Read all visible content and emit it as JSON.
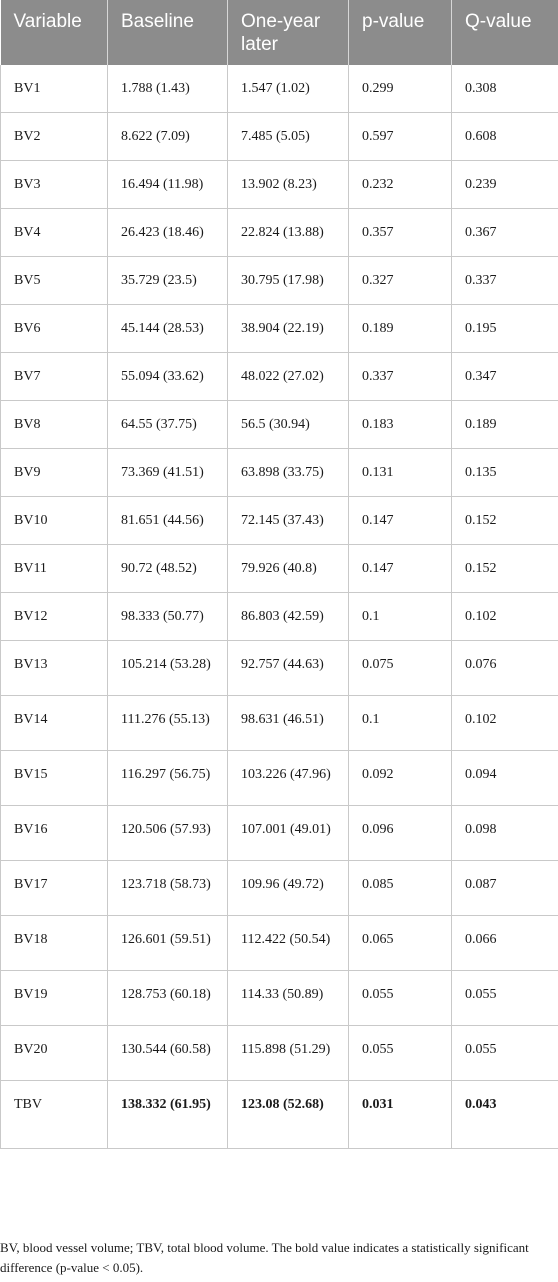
{
  "table": {
    "headers": [
      "Variable",
      "Baseline",
      "One-year later",
      "p-value",
      "Q-value"
    ],
    "rows": [
      {
        "variable": "BV1",
        "baseline": "1.788 (1.43)",
        "one_year": "1.547 (1.02)",
        "p": "0.299",
        "q": "0.308"
      },
      {
        "variable": "BV2",
        "baseline": "8.622 (7.09)",
        "one_year": "7.485 (5.05)",
        "p": "0.597",
        "q": "0.608"
      },
      {
        "variable": "BV3",
        "baseline": "16.494 (11.98)",
        "one_year": "13.902 (8.23)",
        "p": "0.232",
        "q": "0.239"
      },
      {
        "variable": "BV4",
        "baseline": "26.423 (18.46)",
        "one_year": "22.824 (13.88)",
        "p": "0.357",
        "q": "0.367"
      },
      {
        "variable": "BV5",
        "baseline": "35.729 (23.5)",
        "one_year": "30.795 (17.98)",
        "p": "0.327",
        "q": "0.337"
      },
      {
        "variable": "BV6",
        "baseline": "45.144 (28.53)",
        "one_year": "38.904 (22.19)",
        "p": "0.189",
        "q": "0.195"
      },
      {
        "variable": "BV7",
        "baseline": "55.094 (33.62)",
        "one_year": "48.022 (27.02)",
        "p": "0.337",
        "q": "0.347"
      },
      {
        "variable": "BV8",
        "baseline": "64.55 (37.75)",
        "one_year": "56.5 (30.94)",
        "p": "0.183",
        "q": "0.189"
      },
      {
        "variable": "BV9",
        "baseline": "73.369 (41.51)",
        "one_year": "63.898 (33.75)",
        "p": "0.131",
        "q": "0.135"
      },
      {
        "variable": "BV10",
        "baseline": "81.651 (44.56)",
        "one_year": "72.145 (37.43)",
        "p": "0.147",
        "q": "0.152"
      },
      {
        "variable": "BV11",
        "baseline": "90.72 (48.52)",
        "one_year": "79.926 (40.8)",
        "p": "0.147",
        "q": "0.152"
      },
      {
        "variable": "BV12",
        "baseline": "98.333 (50.77)",
        "one_year": "86.803 (42.59)",
        "p": "0.1",
        "q": "0.102"
      },
      {
        "variable": "BV13",
        "baseline": "105.214 (53.28)",
        "one_year": "92.757 (44.63)",
        "p": "0.075",
        "q": "0.076"
      },
      {
        "variable": "BV14",
        "baseline": "111.276 (55.13)",
        "one_year": "98.631 (46.51)",
        "p": "0.1",
        "q": "0.102"
      },
      {
        "variable": "BV15",
        "baseline": "116.297 (56.75)",
        "one_year": "103.226 (47.96)",
        "p": "0.092",
        "q": "0.094"
      },
      {
        "variable": "BV16",
        "baseline": "120.506 (57.93)",
        "one_year": "107.001 (49.01)",
        "p": "0.096",
        "q": "0.098"
      },
      {
        "variable": "BV17",
        "baseline": "123.718 (58.73)",
        "one_year": "109.96 (49.72)",
        "p": "0.085",
        "q": "0.087"
      },
      {
        "variable": "BV18",
        "baseline": "126.601 (59.51)",
        "one_year": "112.422 (50.54)",
        "p": "0.065",
        "q": "0.066"
      },
      {
        "variable": "BV19",
        "baseline": "128.753 (60.18)",
        "one_year": "114.33 (50.89)",
        "p": "0.055",
        "q": "0.055"
      },
      {
        "variable": "BV20",
        "baseline": "130.544 (60.58)",
        "one_year": "115.898 (51.29)",
        "p": "0.055",
        "q": "0.055"
      },
      {
        "variable": "TBV",
        "baseline": "138.332 (61.95)",
        "one_year": "123.08 (52.68)",
        "p": "0.031",
        "q": "0.043"
      }
    ]
  },
  "footnote": "BV, blood vessel volume; TBV, total blood volume. The bold value indicates a statistically significant difference (p-value < 0.05)."
}
